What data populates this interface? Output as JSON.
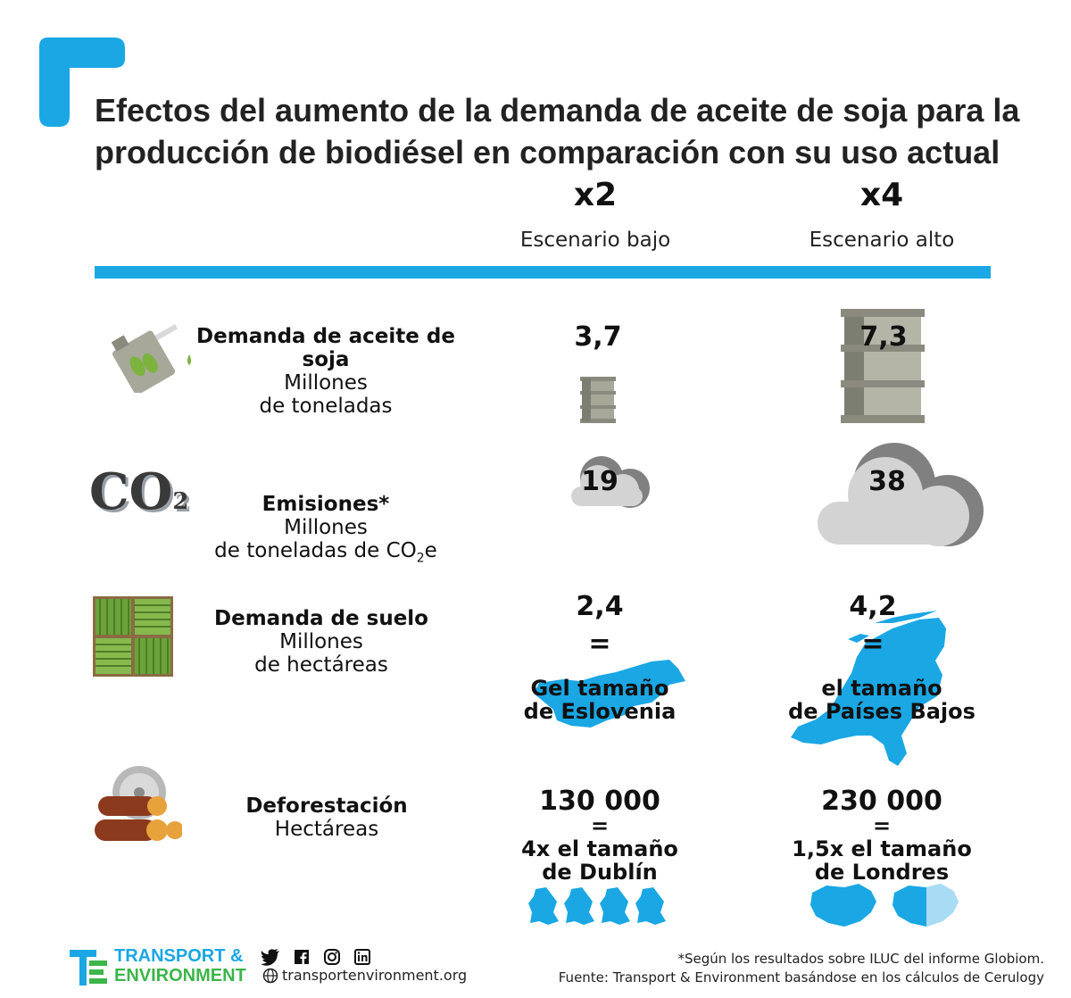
{
  "title": "Efectos del aumento de la demanda de aceite de soja para la producción de biodiésel en comparación con su uso actual",
  "scenarios": [
    {
      "multiplier": "x2",
      "label": "Escenario bajo"
    },
    {
      "multiplier": "x4",
      "label": "Escenario alto"
    }
  ],
  "rows": {
    "oil": {
      "title": "Demanda de aceite de soja",
      "unit_line1": "Millones",
      "unit_line2": "de toneladas",
      "low": "3,7",
      "high": "7,3"
    },
    "emissions": {
      "title": "Emisiones*",
      "unit_line1": "Millones",
      "unit_line2_prefix": "de toneladas de CO",
      "unit_line2_sub": "2",
      "unit_line2_suffix": "e",
      "co2_main": "CO",
      "co2_sub": "2",
      "low": "19",
      "high": "38"
    },
    "land": {
      "title": "Demanda de suelo",
      "unit_line1": "Millones",
      "unit_line2": "de hectáreas",
      "low": "2,4",
      "high": "4,2",
      "equals": "=",
      "low_comp_line1": "Gel tamaño",
      "low_comp_line2": "de Eslovenia",
      "high_comp_line1": "el tamaño",
      "high_comp_line2": "de Países Bajos"
    },
    "deforestation": {
      "title": "Deforestación",
      "unit_line1": "Hectáreas",
      "low": "130 000",
      "high": "230 000",
      "equals": "=",
      "low_comp_line1": "4x el tamaño",
      "low_comp_line2": "de Dublín",
      "high_comp_line1": "1,5x el tamaño",
      "high_comp_line2": "de Londres"
    }
  },
  "footer": {
    "logo_line1": "TRANSPORT &",
    "logo_line2": "ENVIRONMENT",
    "website": "transportenvironment.org",
    "note": "*Según los resultados sobre ILUC del informe Globiom.",
    "source": "Fuente: Transport & Environment basándose en los cálculos de Cerulogy",
    "social_icons": [
      "twitter-icon",
      "facebook-icon",
      "instagram-icon",
      "linkedin-icon"
    ]
  },
  "colors": {
    "accent": "#1aa7e4",
    "logo_green": "#3cb54a",
    "logo_blue": "#1aa7e4",
    "barrel": "#a7a89a",
    "cloud": "#d3d3d3"
  }
}
